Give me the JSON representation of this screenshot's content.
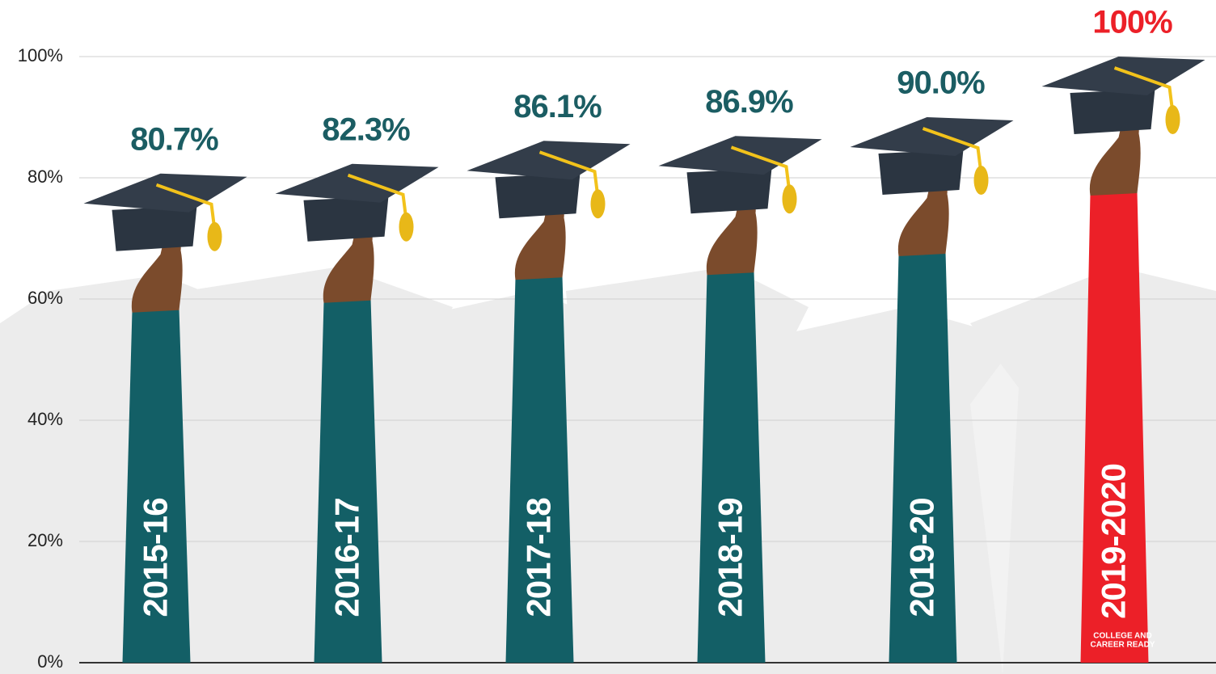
{
  "chart_data": {
    "type": "bar",
    "categories": [
      "2015-16",
      "2016-17",
      "2017-18",
      "2018-19",
      "2019-20",
      "2019-2020"
    ],
    "values": [
      80.7,
      82.3,
      86.1,
      86.9,
      90.0,
      100
    ],
    "value_labels": [
      "80.7%",
      "82.3%",
      "86.1%",
      "86.9%",
      "90.0%",
      "100%"
    ],
    "colors": [
      "#135f66",
      "#135f66",
      "#135f66",
      "#135f66",
      "#135f66",
      "#ec2028"
    ],
    "label_colors": [
      "#1b5d63",
      "#1b5d63",
      "#1b5d63",
      "#1b5d63",
      "#1b5d63",
      "#ec2028"
    ],
    "ylim": [
      0,
      100
    ],
    "yticks": [
      {
        "value": 0,
        "label": "0%"
      },
      {
        "value": 20,
        "label": "20%"
      },
      {
        "value": 40,
        "label": "40%"
      },
      {
        "value": 60,
        "label": "60%"
      },
      {
        "value": 80,
        "label": "80%"
      },
      {
        "value": 100,
        "label": "100%"
      }
    ],
    "grid": true,
    "annotations": [
      "COLLEGE AND",
      "CAREER READY"
    ]
  }
}
